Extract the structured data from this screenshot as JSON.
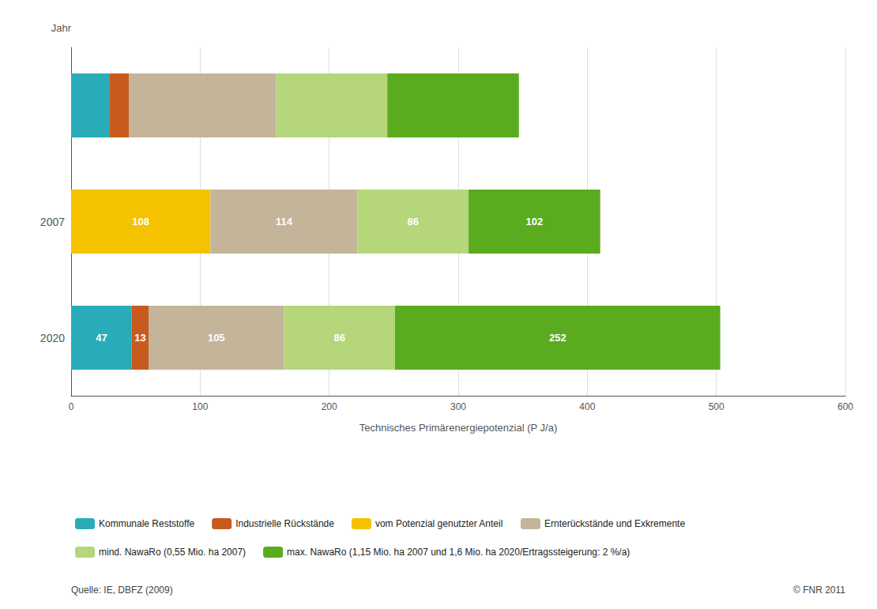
{
  "chart_data": {
    "type": "bar",
    "orientation": "horizontal",
    "stacked": true,
    "data_labels": true,
    "grid": true,
    "legend": "bottom",
    "ylabel": "Jahr",
    "xlabel": "Technisches Primärenergiepotenzial (P J/a)",
    "categories": [
      "2020",
      "2007",
      null
    ],
    "xlim": [
      0,
      600
    ],
    "xticks": [
      0,
      100,
      200,
      300,
      400,
      500,
      600
    ],
    "series": [
      {
        "name": "Kommunale Reststoffe",
        "color": "#2aacb8",
        "values": [
          47,
          null,
          30
        ],
        "value_labels": [
          "47",
          null,
          null
        ]
      },
      {
        "name": "Industrielle Rückstände",
        "color": "#c85a1e",
        "values": [
          13,
          null,
          15
        ],
        "value_labels": [
          "13",
          null,
          null
        ]
      },
      {
        "name": "vom Potenzial genutzter Anteil",
        "color": "#f5c200",
        "values": [
          null,
          108,
          null
        ],
        "value_labels": [
          null,
          "108",
          null
        ]
      },
      {
        "name": "Ernterückstände und Exkremente",
        "color": "#c4b49a",
        "values": [
          105,
          114,
          114
        ],
        "value_labels": [
          "105",
          "114",
          null
        ]
      },
      {
        "name": "mind. NawaRo (0,55 Mio. ha 2007)",
        "color": "#b5d67a",
        "values": [
          86,
          86,
          86
        ],
        "value_labels": [
          "86",
          "86",
          null
        ]
      },
      {
        "name": "max. NawaRo (1,15 Mio. ha 2007 und 1,6 Mio. ha 2020/Ertragssteigerung: 2 %/a)",
        "color": "#5aab1e",
        "values": [
          252,
          102,
          102
        ],
        "value_labels": [
          "252",
          "102",
          null
        ]
      }
    ],
    "annotations": [
      "Quelle: IE, DBFZ (2009)",
      "© FNR 2011"
    ]
  }
}
